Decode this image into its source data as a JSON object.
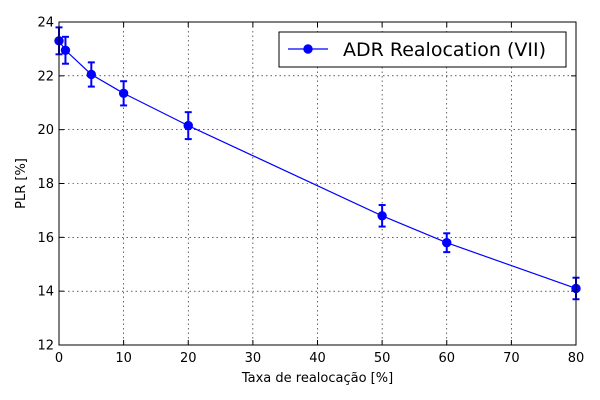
{
  "chart_data": {
    "type": "line",
    "title": "",
    "xlabel": "Taxa de realocação [%]",
    "ylabel": "PLR [%]",
    "xlim": [
      0,
      80
    ],
    "ylim": [
      12,
      24
    ],
    "xticks": [
      0,
      10,
      20,
      30,
      40,
      50,
      60,
      70,
      80
    ],
    "yticks": [
      12,
      14,
      16,
      18,
      20,
      22,
      24
    ],
    "grid": true,
    "legend_position": "top-right",
    "series": [
      {
        "name": "ADR Realocation (VII)",
        "color": "#0000ff",
        "marker": "circle",
        "x": [
          0,
          1,
          5,
          10,
          20,
          50,
          60,
          80
        ],
        "y": [
          23.3,
          22.95,
          22.05,
          21.35,
          20.15,
          16.8,
          15.8,
          14.1
        ],
        "err": [
          0.5,
          0.5,
          0.45,
          0.45,
          0.5,
          0.4,
          0.35,
          0.4
        ]
      }
    ]
  }
}
